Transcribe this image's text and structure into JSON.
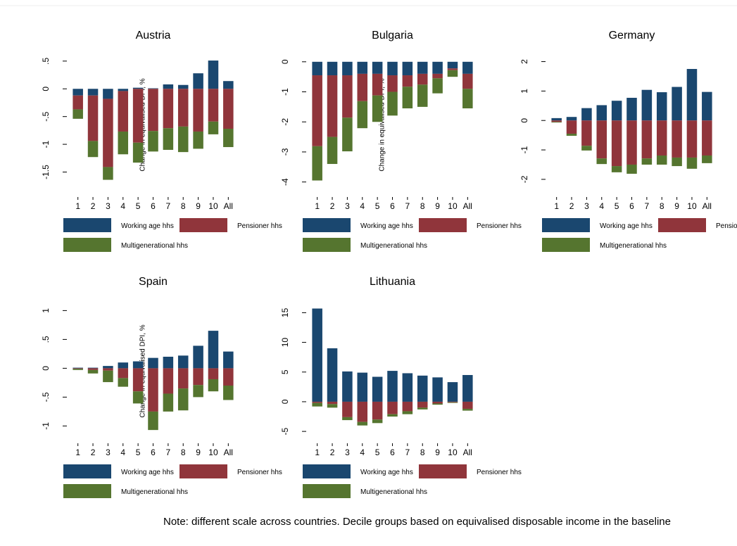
{
  "chart_data": [
    {
      "type": "bar",
      "title": "Austria",
      "ytitle": "Change in equivalised DPI, %",
      "categories": [
        "1",
        "2",
        "3",
        "4",
        "5",
        "6",
        "7",
        "8",
        "9",
        "10",
        "All"
      ],
      "series": [
        {
          "name": "Working age hhs",
          "color": "#1a476f",
          "values": [
            -0.12,
            -0.12,
            -0.18,
            -0.04,
            0.02,
            0.01,
            0.08,
            0.07,
            0.28,
            0.51,
            0.14
          ]
        },
        {
          "name": "Pensioner hhs",
          "color": "#90353b",
          "values": [
            -0.25,
            -0.82,
            -1.23,
            -0.73,
            -0.97,
            -0.76,
            -0.71,
            -0.68,
            -0.77,
            -0.59,
            -0.72
          ]
        },
        {
          "name": "Multigenerational hhs",
          "color": "#55752f",
          "values": [
            -0.17,
            -0.29,
            -0.23,
            -0.41,
            -0.36,
            -0.37,
            -0.39,
            -0.46,
            -0.31,
            -0.23,
            -0.33
          ]
        }
      ],
      "ylim": [
        -1.95,
        0.65
      ],
      "yticks": [
        {
          "value": 0.5,
          "label": ".5"
        },
        0,
        {
          "value": -0.5,
          "label": "-.5"
        },
        -1,
        {
          "value": -1.5,
          "label": "-1.5"
        }
      ],
      "grid": false
    },
    {
      "type": "bar",
      "title": "Bulgaria",
      "ytitle": "Change in equivalised DPI, %",
      "categories": [
        "1",
        "2",
        "3",
        "4",
        "5",
        "6",
        "7",
        "8",
        "9",
        "10",
        "All"
      ],
      "series": [
        {
          "name": "Working age hhs",
          "color": "#1a476f",
          "values": [
            -0.45,
            -0.45,
            -0.45,
            -0.4,
            -0.4,
            -0.45,
            -0.45,
            -0.4,
            -0.4,
            -0.22,
            -0.4
          ]
        },
        {
          "name": "Pensioner hhs",
          "color": "#90353b",
          "values": [
            -2.36,
            -2.05,
            -1.41,
            -0.91,
            -0.72,
            -0.55,
            -0.38,
            -0.36,
            -0.15,
            -0.06,
            -0.5
          ]
        },
        {
          "name": "Multigenerational hhs",
          "color": "#55752f",
          "values": [
            -1.14,
            -0.9,
            -1.12,
            -0.9,
            -0.88,
            -0.79,
            -0.72,
            -0.74,
            -0.5,
            -0.22,
            -0.65
          ]
        }
      ],
      "ylim": [
        -4.5,
        0.3
      ],
      "yticks": [
        0,
        -1,
        -2,
        -3,
        -4
      ],
      "grid": false
    },
    {
      "type": "bar",
      "title": "Germany",
      "categories": [
        "1",
        "2",
        "3",
        "4",
        "5",
        "6",
        "7",
        "8",
        "9",
        "10",
        "All"
      ],
      "series": [
        {
          "name": "Working age hhs",
          "color": "#1a476f",
          "values": [
            0.08,
            0.12,
            0.42,
            0.52,
            0.67,
            0.77,
            1.04,
            0.96,
            1.14,
            1.75,
            0.97
          ]
        },
        {
          "name": "Pensioner hhs",
          "color": "#90353b",
          "values": [
            -0.05,
            -0.45,
            -0.86,
            -1.29,
            -1.55,
            -1.5,
            -1.29,
            -1.19,
            -1.26,
            -1.26,
            -1.19
          ]
        },
        {
          "name": "Multigenerational hhs",
          "color": "#55752f",
          "values": [
            -0.02,
            -0.07,
            -0.16,
            -0.19,
            -0.21,
            -0.31,
            -0.21,
            -0.31,
            -0.29,
            -0.38,
            -0.26
          ]
        }
      ],
      "ylim": [
        -2.6,
        2.3
      ],
      "yticks": [
        2,
        1,
        0,
        -1,
        -2
      ],
      "grid": false
    },
    {
      "type": "bar",
      "title": "Spain",
      "ytitle": "Change in equivalised DPI, %",
      "categories": [
        "1",
        "2",
        "3",
        "4",
        "5",
        "6",
        "7",
        "8",
        "9",
        "10",
        "All"
      ],
      "series": [
        {
          "name": "Working age hhs",
          "color": "#1a476f",
          "values": [
            0.01,
            0.01,
            0.04,
            0.1,
            0.12,
            0.18,
            0.2,
            0.22,
            0.39,
            0.65,
            0.29
          ]
        },
        {
          "name": "Pensioner hhs",
          "color": "#90353b",
          "values": [
            -0.01,
            -0.03,
            -0.04,
            -0.17,
            -0.4,
            -0.75,
            -0.44,
            -0.35,
            -0.29,
            -0.19,
            -0.3
          ]
        },
        {
          "name": "Multigenerational hhs",
          "color": "#55752f",
          "values": [
            -0.02,
            -0.06,
            -0.2,
            -0.15,
            -0.21,
            -0.32,
            -0.31,
            -0.38,
            -0.21,
            -0.21,
            -0.25
          ]
        }
      ],
      "ylim": [
        -1.3,
        1.2
      ],
      "yticks": [
        1,
        {
          "value": 0.5,
          "label": ".5"
        },
        0,
        {
          "value": -0.5,
          "label": "-.5"
        },
        -1
      ],
      "grid": false
    },
    {
      "type": "bar",
      "title": "Lithuania",
      "categories": [
        "1",
        "2",
        "3",
        "4",
        "5",
        "6",
        "7",
        "8",
        "9",
        "10",
        "All"
      ],
      "series": [
        {
          "name": "Working age hhs",
          "color": "#1a476f",
          "values": [
            15.7,
            9.0,
            5.1,
            4.9,
            4.2,
            5.2,
            4.8,
            4.4,
            4.1,
            3.3,
            4.5
          ]
        },
        {
          "name": "Pensioner hhs",
          "color": "#90353b",
          "values": [
            -0.2,
            -0.4,
            -2.6,
            -3.4,
            -3.0,
            -2.1,
            -1.6,
            -1.0,
            -0.3,
            -0.1,
            -1.2
          ]
        },
        {
          "name": "Multigenerational hhs",
          "color": "#55752f",
          "values": [
            -0.6,
            -0.6,
            -0.5,
            -0.6,
            -0.6,
            -0.4,
            -0.5,
            -0.3,
            -0.2,
            -0.1,
            -0.3
          ]
        }
      ],
      "ylim": [
        -7,
        17.3
      ],
      "yticks": [
        15,
        10,
        5,
        0,
        -5
      ],
      "grid": false
    }
  ],
  "note": "Note: different scale across countries. Decile groups based on equivalised disposable income in the baseline"
}
